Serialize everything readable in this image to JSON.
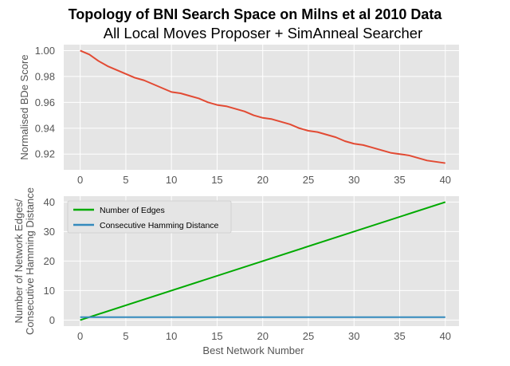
{
  "figure": {
    "title": "Topology of BNI Search Space on Milns et al 2010 Data",
    "subtitle": "All Local Moves Proposer + SimAnneal Searcher"
  },
  "chart_data": [
    {
      "type": "line",
      "ylabel": "Normalised BDe Score",
      "xlabel": "",
      "xlim": [
        -1.8,
        41.5
      ],
      "ylim": [
        0.9078,
        1.0046
      ],
      "xticks": [
        0,
        5,
        10,
        15,
        20,
        25,
        30,
        35,
        40
      ],
      "xtick_labels": [
        "0",
        "5",
        "10",
        "15",
        "20",
        "25",
        "30",
        "35",
        "40"
      ],
      "yticks": [
        0.92,
        0.94,
        0.96,
        0.98,
        1.0
      ],
      "ytick_labels": [
        "0.92",
        "0.94",
        "0.96",
        "0.98",
        "1.00"
      ],
      "grid": true,
      "background": "#e5e5e5",
      "series": [
        {
          "color": "#e24a33",
          "x": [
            0,
            1,
            2,
            3,
            4,
            5,
            6,
            7,
            8,
            9,
            10,
            11,
            12,
            13,
            14,
            15,
            16,
            17,
            18,
            19,
            20,
            21,
            22,
            23,
            24,
            25,
            26,
            27,
            28,
            29,
            30,
            31,
            32,
            33,
            34,
            35,
            36,
            37,
            38,
            39,
            40
          ],
          "values": [
            1.0,
            0.997,
            0.992,
            0.988,
            0.985,
            0.982,
            0.979,
            0.977,
            0.974,
            0.971,
            0.968,
            0.967,
            0.965,
            0.963,
            0.96,
            0.958,
            0.957,
            0.955,
            0.953,
            0.95,
            0.948,
            0.947,
            0.945,
            0.943,
            0.94,
            0.938,
            0.937,
            0.935,
            0.933,
            0.93,
            0.928,
            0.927,
            0.925,
            0.923,
            0.921,
            0.92,
            0.919,
            0.917,
            0.915,
            0.914,
            0.913
          ]
        }
      ]
    },
    {
      "type": "line",
      "ylabel": "Number of Network Edges/\nConsecutive Hamming Distance",
      "xlabel": "Best Network Number",
      "xlim": [
        -1.8,
        41.5
      ],
      "ylim": [
        -2.05,
        42.0
      ],
      "xticks": [
        0,
        5,
        10,
        15,
        20,
        25,
        30,
        35,
        40
      ],
      "xtick_labels": [
        "0",
        "5",
        "10",
        "15",
        "20",
        "25",
        "30",
        "35",
        "40"
      ],
      "yticks": [
        0,
        10,
        20,
        30,
        40
      ],
      "ytick_labels": [
        "0",
        "10",
        "20",
        "30",
        "40"
      ],
      "grid": true,
      "background": "#e5e5e5",
      "legend": "top-left",
      "series": [
        {
          "name": "Number of Edges",
          "color": "#00aa00",
          "x": [
            0,
            40
          ],
          "values": [
            0,
            40
          ]
        },
        {
          "name": "Consecutive Hamming Distance",
          "color": "#348abd",
          "x": [
            0,
            40
          ],
          "values": [
            1,
            1
          ]
        }
      ]
    }
  ]
}
